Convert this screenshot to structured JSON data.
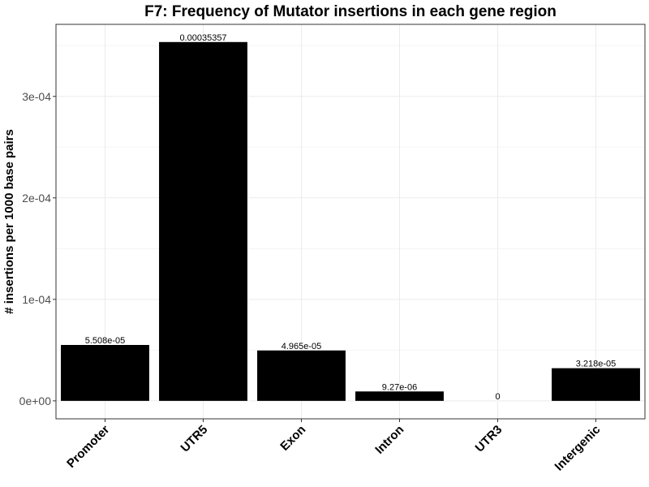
{
  "chart_data": {
    "type": "bar",
    "title": "F7: Frequency of Mutator insertions in each gene region",
    "xlabel": "",
    "ylabel": "# insertions per 1000 base pairs",
    "categories": [
      "Promoter",
      "UTR5",
      "Exon",
      "Intron",
      "UTR3",
      "Intergenic"
    ],
    "values": [
      5.508e-05,
      0.00035357,
      4.965e-05,
      9.27e-06,
      0,
      3.218e-05
    ],
    "data_labels": [
      "5.508e-05",
      "0.00035357",
      "4.965e-05",
      "9.27e-06",
      "0",
      "3.218e-05"
    ],
    "ylim": [
      -1.77e-05,
      0.000371
    ],
    "yticks": [
      0,
      0.0001,
      0.0002,
      0.0003
    ],
    "ytick_labels": [
      "0e+00",
      "1e-04",
      "2e-04",
      "3e-04"
    ],
    "bar_color": "#000000",
    "grid": true,
    "legend": "none"
  }
}
